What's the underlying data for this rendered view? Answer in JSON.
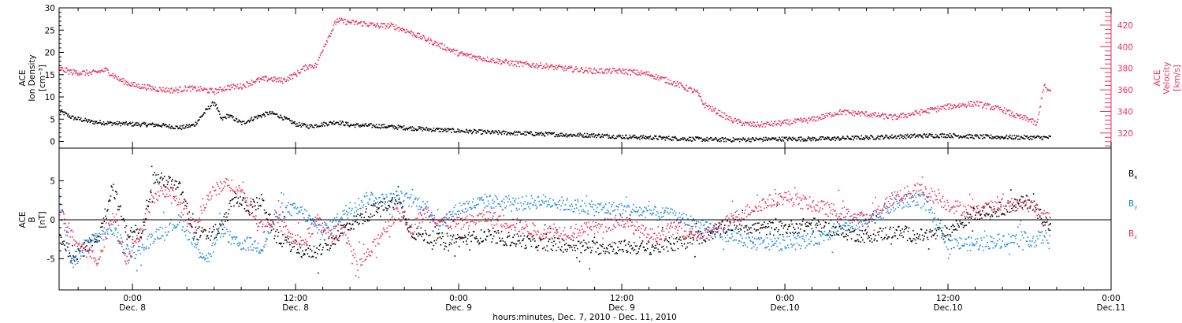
{
  "chart_data": {
    "type": "scatter",
    "xlabel": "hours:minutes, Dec. 7, 2010 - Dec. 11, 2010",
    "x_ticks": [
      {
        "time": "0:00",
        "date": "Dec. 8"
      },
      {
        "time": "12:00",
        "date": "Dec. 8"
      },
      {
        "time": "0:00",
        "date": "Dec. 9"
      },
      {
        "time": "12:00",
        "date": "Dec. 9"
      },
      {
        "time": "0:00",
        "date": "Dec.10"
      },
      {
        "time": "12:00",
        "date": "Dec.10"
      },
      {
        "time": "0:00",
        "date": "Dec.11"
      }
    ],
    "x_tick_hours": [
      0,
      12,
      24,
      36,
      48,
      60,
      72
    ],
    "xlim_hours": [
      -5.4,
      72.0
    ],
    "panels": [
      {
        "id": "density-velocity",
        "left_axis": {
          "label_lines": [
            "ACE",
            "Ion Density",
            "[cm⁻³]"
          ],
          "ylim": [
            -1.5,
            30
          ],
          "ticks": [
            0,
            5,
            10,
            15,
            20,
            25,
            30
          ],
          "color": "#000000"
        },
        "right_axis": {
          "label_lines": [
            "ACE",
            "Velocity",
            "[km/s]"
          ],
          "ylim": [
            306,
            436
          ],
          "ticks": [
            320,
            340,
            360,
            380,
            400,
            420
          ],
          "color": "#e8325a"
        },
        "series": [
          {
            "axis": "left",
            "color": "#000000",
            "x_hours": [
              -5.4,
              -4.5,
              -3,
              -1.5,
              0,
              2,
              3.5,
              4.5,
              5.5,
              6,
              6.5,
              7,
              8,
              9,
              10,
              10.5,
              11,
              12,
              13,
              14,
              15,
              16,
              18,
              20,
              22,
              24,
              26,
              28,
              30,
              32,
              34,
              36,
              38,
              40,
              42,
              44,
              46,
              48,
              50,
              52,
              54,
              56,
              58,
              60,
              62,
              64,
              66,
              67.5
            ],
            "values": [
              7,
              5.5,
              4.5,
              4.2,
              4,
              3.8,
              3.2,
              3.8,
              7.5,
              9,
              5,
              6,
              4.2,
              5.5,
              6.5,
              6.2,
              5.5,
              4,
              3.5,
              4,
              4.5,
              3.8,
              3.6,
              3.2,
              2.8,
              2.5,
              2.2,
              2,
              1.8,
              1.6,
              1.5,
              1.2,
              1,
              0.8,
              0.6,
              0.5,
              0.6,
              0.7,
              0.7,
              0.8,
              1,
              1.2,
              1.4,
              1.5,
              1.2,
              1.1,
              1,
              1
            ]
          },
          {
            "axis": "right",
            "color": "#e8325a",
            "x_hours": [
              -5.4,
              -4.5,
              -3,
              -2,
              -1,
              0,
              1,
              2,
              3,
              4,
              5,
              6,
              7,
              8,
              9,
              10,
              11,
              11.5,
              12,
              12.5,
              13,
              13.5,
              14,
              15,
              16,
              17,
              18,
              19,
              20,
              22,
              24,
              26,
              28,
              30,
              32,
              34,
              36,
              38,
              40,
              41.5,
              42,
              43,
              44,
              45,
              46,
              48,
              50,
              52,
              54,
              56,
              58,
              60,
              62,
              64,
              65,
              66,
              66.5,
              67,
              67.5
            ],
            "values": [
              380,
              377,
              376,
              379,
              370,
              365,
              363,
              361,
              360,
              362,
              361,
              359,
              363,
              364,
              369,
              371,
              369,
              372,
              375,
              380,
              383,
              383,
              400,
              425,
              423,
              422,
              420,
              420,
              416,
              405,
              394,
              389,
              385,
              383,
              380,
              378,
              378,
              375,
              366,
              358,
              347,
              340,
              333,
              329,
              328,
              330,
              333,
              340,
              338,
              335,
              340,
              345,
              348,
              342,
              336,
              333,
              328,
              364,
              358
            ]
          }
        ]
      },
      {
        "id": "magnetic-field",
        "left_axis": {
          "label_lines": [
            "ACE",
            "B",
            "[nT]"
          ],
          "ylim": [
            -9,
            9.2
          ],
          "ticks": [
            -5,
            0,
            5
          ],
          "color": "#000000"
        },
        "zero_line": true,
        "series": [
          {
            "name": "Bx",
            "color": "#000000",
            "x_hours": [
              -5.4,
              -4.5,
              -3.5,
              -2.5,
              -1.5,
              -0.5,
              0.5,
              1.5,
              2.5,
              3.5,
              4.5,
              5.5,
              6.5,
              7.5,
              8.5,
              9.5,
              10.5,
              11.5,
              12.5,
              13.5,
              14.5,
              15.5,
              16.5,
              17.5,
              18.5,
              19.5,
              20.5,
              21.5,
              22.5,
              24,
              26,
              28,
              30,
              32,
              34,
              36,
              38,
              40,
              42,
              44,
              46,
              48,
              50,
              52,
              54,
              56,
              58,
              60,
              62,
              64,
              66,
              67.5
            ],
            "values": [
              -2,
              -4.5,
              -3.5,
              -2,
              4.5,
              -1.5,
              -2,
              5.5,
              5,
              4,
              -1.5,
              -2,
              -1,
              3,
              1.5,
              2.5,
              -2,
              -3,
              -4,
              -4,
              -3,
              -1,
              0,
              1,
              2,
              2.5,
              -1.5,
              -2,
              -2.5,
              -2.5,
              -2,
              -2.5,
              -3,
              -3.2,
              -3.5,
              -3.4,
              -3.5,
              -3,
              -2,
              -0.5,
              -1,
              -1,
              -0.5,
              -1.5,
              -2,
              -1.5,
              -2,
              -1.5,
              1,
              1.5,
              2.5,
              -1
            ]
          },
          {
            "name": "By",
            "color": "#1e88e5",
            "x_hours": [
              -5.4,
              -4.5,
              -3.5,
              -2.5,
              -1.5,
              -0.5,
              0.5,
              1.5,
              2.5,
              3.5,
              4.5,
              5.5,
              6.5,
              7.5,
              8.5,
              9.5,
              10.5,
              11.5,
              12.5,
              13.5,
              14.5,
              15.5,
              16.5,
              17.5,
              18.5,
              19.5,
              20.5,
              21.5,
              22.5,
              24,
              26,
              28,
              30,
              32,
              34,
              36,
              38,
              40,
              42,
              44,
              46,
              48,
              50,
              52,
              54,
              56,
              58,
              60,
              62,
              64,
              66,
              67.5
            ],
            "values": [
              3,
              -6,
              -3,
              -2,
              -1,
              -4,
              -4,
              -2,
              -1,
              0,
              -3,
              -5,
              -1,
              -3,
              -3,
              -3.5,
              0.5,
              1.5,
              1,
              -1,
              -1,
              1,
              2,
              3,
              2.5,
              3,
              2.5,
              2,
              -0.5,
              1.5,
              2.5,
              2,
              2.5,
              2,
              1.5,
              1.5,
              1,
              0.5,
              -1,
              -2,
              -3,
              -3,
              -2.5,
              -1,
              0,
              2,
              3,
              -3,
              -3,
              -2.5,
              -2.5,
              -2
            ]
          },
          {
            "name": "Bz",
            "color": "#e8325a",
            "x_hours": [
              -5.4,
              -4.5,
              -3.5,
              -2.5,
              -1.5,
              -0.5,
              0.5,
              1.5,
              2.5,
              3.5,
              4.5,
              5.5,
              6.5,
              7.5,
              8.5,
              9.5,
              10.5,
              11.5,
              12.5,
              13.5,
              14.5,
              15.5,
              16.5,
              17.5,
              18.5,
              19.5,
              20.5,
              21.5,
              22.5,
              24,
              26,
              28,
              30,
              32,
              34,
              36,
              38,
              40,
              42,
              44,
              46,
              48,
              50,
              52,
              54,
              56,
              58,
              60,
              62,
              64,
              66,
              67.5
            ],
            "values": [
              1,
              -2,
              -4,
              -5,
              1,
              -5,
              -2,
              3,
              4,
              2,
              -1,
              3,
              4.5,
              4.5,
              2.5,
              -1,
              0.5,
              -2,
              -3,
              0,
              -2,
              -1,
              -6,
              -4,
              -1,
              1,
              -1,
              1,
              0,
              -0.5,
              0.5,
              -0.5,
              -1.5,
              -1.5,
              -1,
              0,
              -2,
              -1,
              -2,
              0,
              2,
              3,
              2,
              1,
              0,
              3,
              4,
              2,
              1,
              2,
              2,
              0
            ]
          }
        ],
        "legend": [
          {
            "label": "B",
            "sub": "x",
            "color": "#000000"
          },
          {
            "label": "B",
            "sub": "y",
            "color": "#1e88e5"
          },
          {
            "label": "B",
            "sub": "z",
            "color": "#e8325a"
          }
        ]
      }
    ]
  }
}
